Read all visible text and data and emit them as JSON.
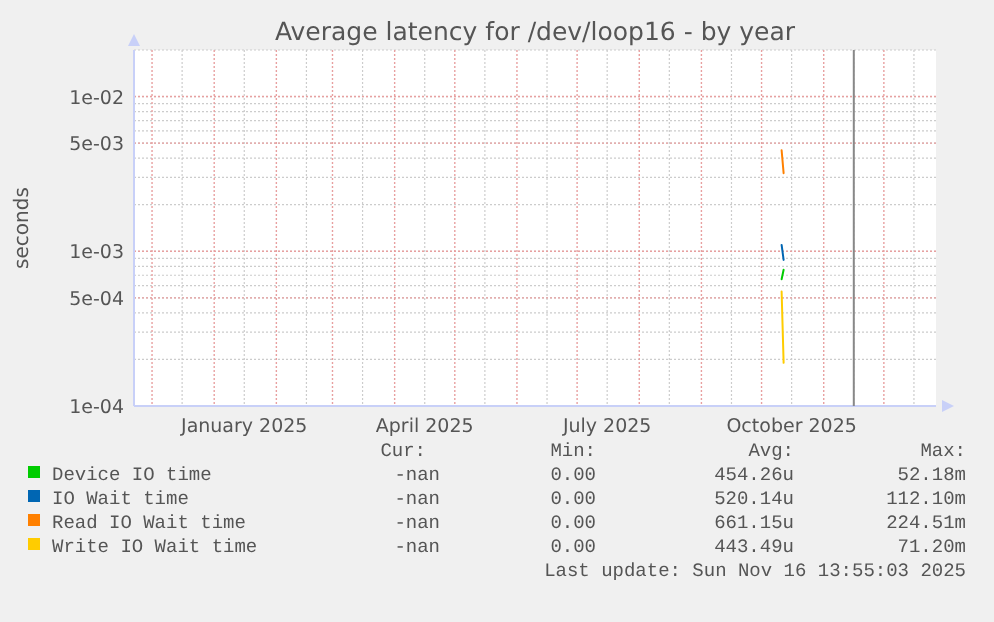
{
  "chart_data": {
    "type": "line",
    "title": "Average latency for /dev/loop16 - by year",
    "ylabel": "seconds",
    "log": "y",
    "grid": true,
    "legend": "bottom",
    "xlim": [
      "2024-11-22",
      "2025-12-27"
    ],
    "xticks": [
      {
        "value": "2025-01-16",
        "label": "January 2025"
      },
      {
        "value": "2025-04-16",
        "label": "April 2025"
      },
      {
        "value": "2025-07-16",
        "label": "July 2025"
      },
      {
        "value": "2025-10-16",
        "label": "October 2025"
      }
    ],
    "ylim": [
      0.0001,
      0.02
    ],
    "yticks": [
      {
        "value": 0.01,
        "label": "1e-02"
      },
      {
        "value": 0.005,
        "label": "5e-03"
      },
      {
        "value": 0.001,
        "label": "1e-03"
      },
      {
        "value": 0.0005,
        "label": "5e-04"
      },
      {
        "value": 0.0001,
        "label": "1e-04"
      }
    ],
    "series": [
      {
        "name": "Device IO time",
        "color": "#00cc00",
        "x": [
          "2025-10-11",
          "2025-10-12"
        ],
        "values": [
          0.00066,
          0.00076
        ]
      },
      {
        "name": "IO Wait time",
        "color": "#0066b3",
        "x": [
          "2025-10-11",
          "2025-10-12"
        ],
        "values": [
          0.0011,
          0.00088
        ]
      },
      {
        "name": "Read IO Wait time",
        "color": "#ff8000",
        "x": [
          "2025-10-11",
          "2025-10-12"
        ],
        "values": [
          0.0045,
          0.0032
        ]
      },
      {
        "name": "Write IO Wait time",
        "color": "#ffcc00",
        "x": [
          "2025-10-11",
          "2025-10-12"
        ],
        "values": [
          0.00055,
          0.00019
        ]
      }
    ],
    "ref_lines": [
      {
        "axis": "x",
        "value": "2025-11-16",
        "color": "#888888"
      }
    ],
    "annotations": [
      "Cur:",
      "Min:",
      "Avg:",
      "Max:",
      "-nan",
      "0.00",
      "454.26u",
      "52.18m",
      "-nan",
      "0.00",
      "520.14u",
      "112.10m",
      "-nan",
      "0.00",
      "661.15u",
      "224.51m",
      "-nan",
      "0.00",
      "443.49u",
      "71.20m",
      "Last update: Sun Nov 16 13:55:03 2025"
    ]
  }
}
